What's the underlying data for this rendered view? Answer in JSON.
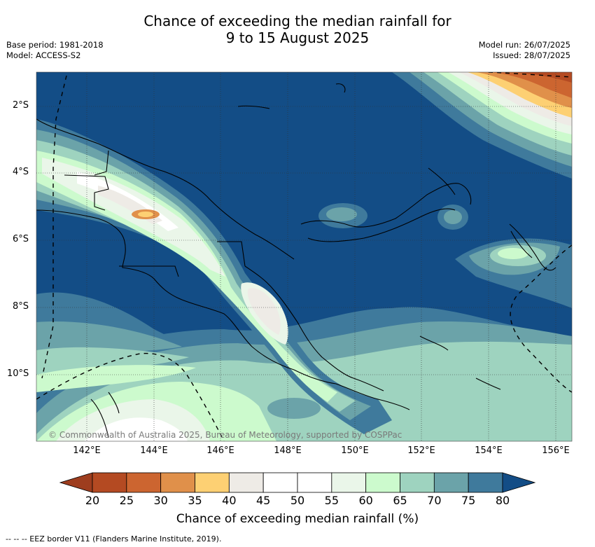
{
  "title_line1": "Chance of exceeding the median rainfall for",
  "title_line2": "9 to 15 August 2025",
  "meta_left": {
    "base_period": "Base period: 1981-2018",
    "model": "Model: ACCESS-S2"
  },
  "meta_right": {
    "model_run": "Model run: 26/07/2025",
    "issued": "Issued: 28/07/2025"
  },
  "lat_labels": [
    "2°S",
    "4°S",
    "6°S",
    "8°S",
    "10°S"
  ],
  "lon_labels": [
    "142°E",
    "144°E",
    "146°E",
    "148°E",
    "150°E",
    "152°E",
    "154°E",
    "156°E"
  ],
  "copyright": "© Commonwealth of Australia 2025, Bureau of Meteorology, supported by COSPPac",
  "colorbar": {
    "ticks": [
      "20",
      "25",
      "30",
      "35",
      "40",
      "45",
      "50",
      "55",
      "60",
      "65",
      "70",
      "75",
      "80"
    ],
    "colors": [
      "#9e3d1e",
      "#b44a22",
      "#cc6530",
      "#e0904a",
      "#fdd073",
      "#eeebe6",
      "#ffffff",
      "#ffffff",
      "#eaf6e9",
      "#ccfacd",
      "#9ed3bf",
      "#6ba3a9",
      "#3f7a9c",
      "#134d86"
    ],
    "title": "Chance of exceeding median rainfall (%)"
  },
  "legend_note": "--  --  -- EEZ border V11 (Flanders Marine Institute, 2019)."
}
